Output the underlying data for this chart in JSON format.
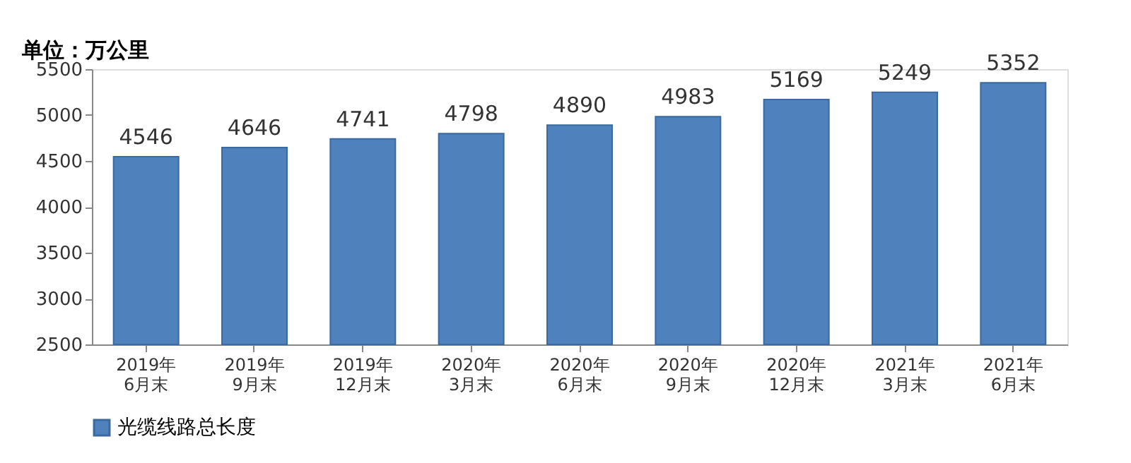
{
  "chart_data": {
    "type": "bar",
    "ylabel": "单位：万公里",
    "categories": [
      "2019年\n6月末",
      "2019年\n9月末",
      "2019年\n12月末",
      "2020年\n3月末",
      "2020年\n6月末",
      "2020年\n9月末",
      "2020年\n12月末",
      "2021年\n3月末",
      "2021年\n6月末"
    ],
    "series": [
      {
        "name": "光缆线路总长度",
        "color": "#4f81bd",
        "values": [
          4546,
          4646,
          4741,
          4798,
          4890,
          4983,
          5169,
          5249,
          5352
        ]
      }
    ],
    "ylim": [
      2500,
      5500
    ],
    "yticks": [
      2500,
      3000,
      3500,
      4000,
      4500,
      5000,
      5500
    ],
    "data_labels": true,
    "legend": "bottom",
    "grid": false
  }
}
